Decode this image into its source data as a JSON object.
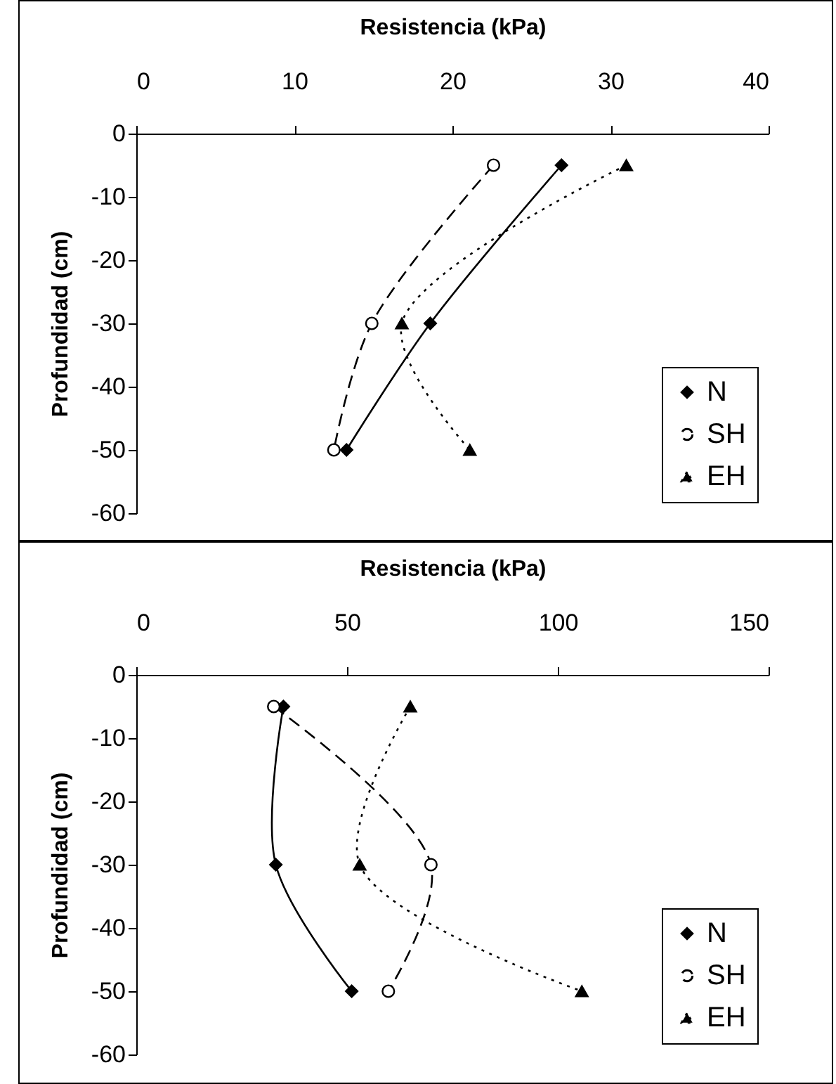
{
  "chart_data": [
    {
      "type": "line",
      "xlabel": "Resistencia (kPa)",
      "ylabel": "Profundidad (cm)",
      "xlim": [
        0,
        40
      ],
      "xticks": [
        0,
        10,
        20,
        30,
        40
      ],
      "ylim": [
        -60,
        0
      ],
      "yticks": [
        0,
        -10,
        -20,
        -30,
        -40,
        -50,
        -60
      ],
      "grid": false,
      "legend": "bottom right",
      "series": [
        {
          "name": "N",
          "color": "#000000",
          "marker": "diamond",
          "line_style": "solid",
          "x": [
            26.9,
            18.6,
            13.3
          ],
          "values": [
            -5,
            -30,
            -50
          ]
        },
        {
          "name": "SH",
          "color": "#000000",
          "marker": "circle",
          "line_style": "dashed",
          "x": [
            22.6,
            14.9,
            12.5
          ],
          "values": [
            -5,
            -30,
            -50
          ]
        },
        {
          "name": "EH",
          "color": "#000000",
          "marker": "triangle",
          "line_style": "dotted",
          "x": [
            31.0,
            16.8,
            21.1
          ],
          "values": [
            -5,
            -30,
            -50
          ]
        }
      ]
    },
    {
      "type": "line",
      "xlabel": "Resistencia (kPa)",
      "ylabel": "Profundidad (cm)",
      "xlim": [
        0,
        150
      ],
      "xticks": [
        0,
        50,
        100,
        150
      ],
      "ylim": [
        -60,
        0
      ],
      "yticks": [
        0,
        -10,
        -20,
        -30,
        -40,
        -50,
        -60
      ],
      "grid": false,
      "legend": "bottom right",
      "series": [
        {
          "name": "N",
          "color": "#000000",
          "marker": "diamond",
          "line_style": "solid",
          "x": [
            34.9,
            33.1,
            51.1
          ],
          "values": [
            -5,
            -30,
            -50
          ]
        },
        {
          "name": "SH",
          "color": "#000000",
          "marker": "circle",
          "line_style": "dashed",
          "x": [
            32.6,
            69.9,
            59.8
          ],
          "values": [
            -5,
            -30,
            -50
          ]
        },
        {
          "name": "EH",
          "color": "#000000",
          "marker": "triangle",
          "line_style": "dotted",
          "x": [
            65,
            53,
            105.7
          ],
          "values": [
            -5,
            -30,
            -50
          ]
        }
      ]
    }
  ]
}
